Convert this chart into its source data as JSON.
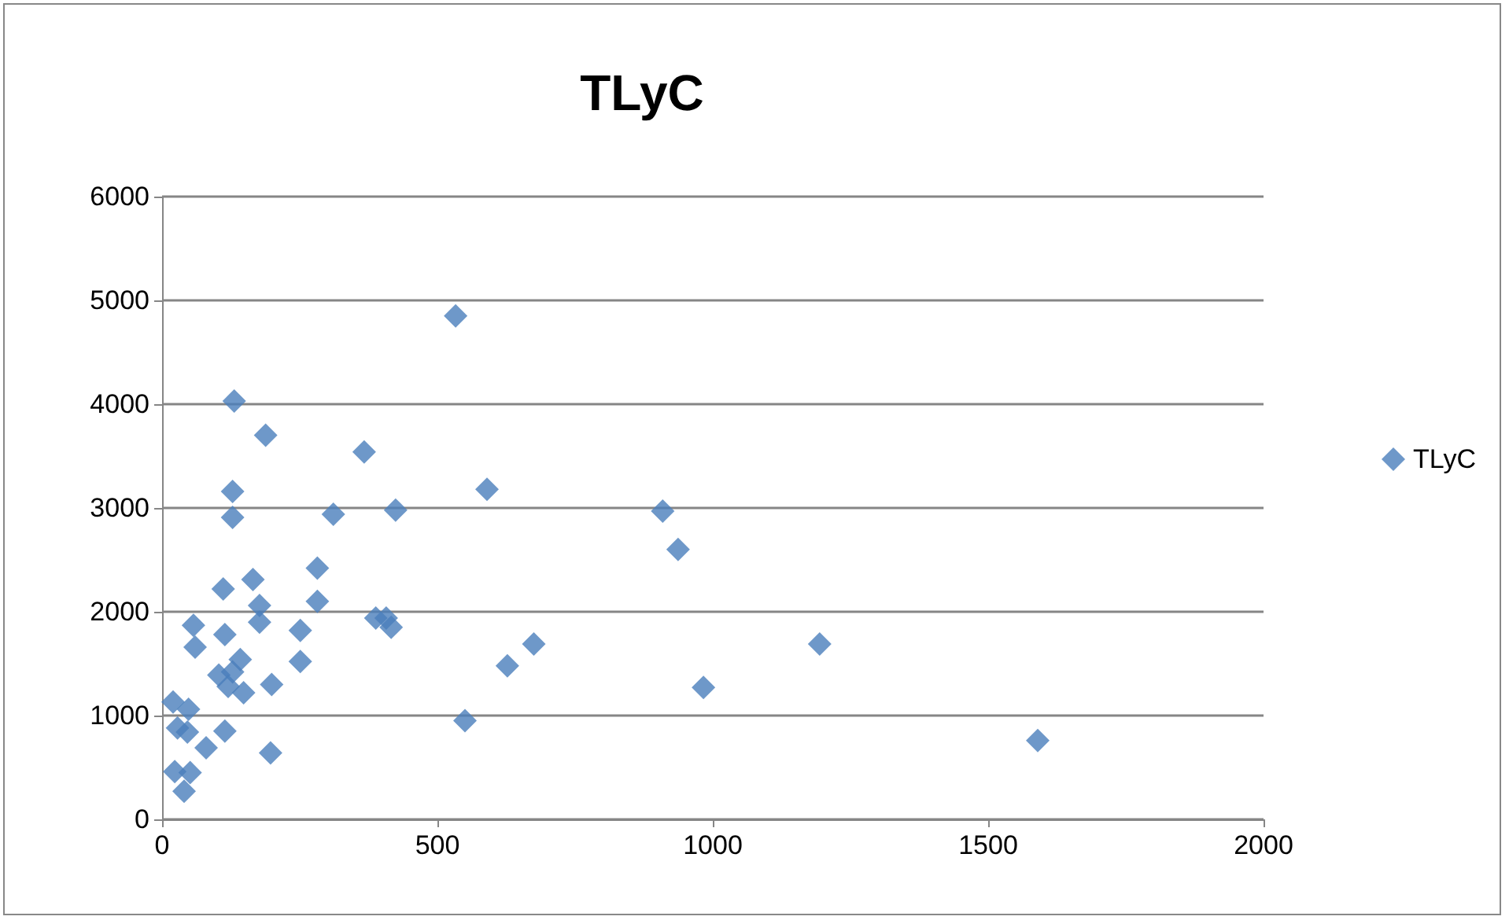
{
  "chart_data": {
    "type": "scatter",
    "title": "TLyC",
    "x": [
      533,
      131,
      188,
      367,
      128,
      128,
      311,
      424,
      590,
      909,
      937,
      165,
      111,
      282,
      282,
      177,
      177,
      57,
      60,
      114,
      388,
      407,
      416,
      251,
      251,
      142,
      103,
      128,
      120,
      148,
      199,
      1194,
      675,
      627,
      550,
      983,
      1590,
      197,
      20,
      48,
      28,
      46,
      80,
      114,
      23,
      51,
      40
    ],
    "series": [
      {
        "name": "TLyC",
        "color": "#4a7ebb",
        "values": [
          4850,
          4030,
          3700,
          3540,
          3160,
          2910,
          2940,
          2980,
          3180,
          2970,
          2600,
          2310,
          2220,
          2420,
          2100,
          2060,
          1900,
          1870,
          1660,
          1780,
          1940,
          1940,
          1850,
          1820,
          1520,
          1540,
          1390,
          1420,
          1280,
          1220,
          1300,
          1690,
          1690,
          1480,
          950,
          1270,
          760,
          640,
          1130,
          1060,
          880,
          840,
          690,
          850,
          460,
          450,
          270
        ]
      }
    ],
    "xlim": [
      0,
      2000
    ],
    "xticks": [
      0,
      500,
      1000,
      1500,
      2000
    ],
    "ylim": [
      0,
      6000
    ],
    "yticks": [
      0,
      1000,
      2000,
      3000,
      4000,
      5000,
      6000
    ],
    "grid": "y",
    "legend": "right",
    "marker": "diamond"
  }
}
